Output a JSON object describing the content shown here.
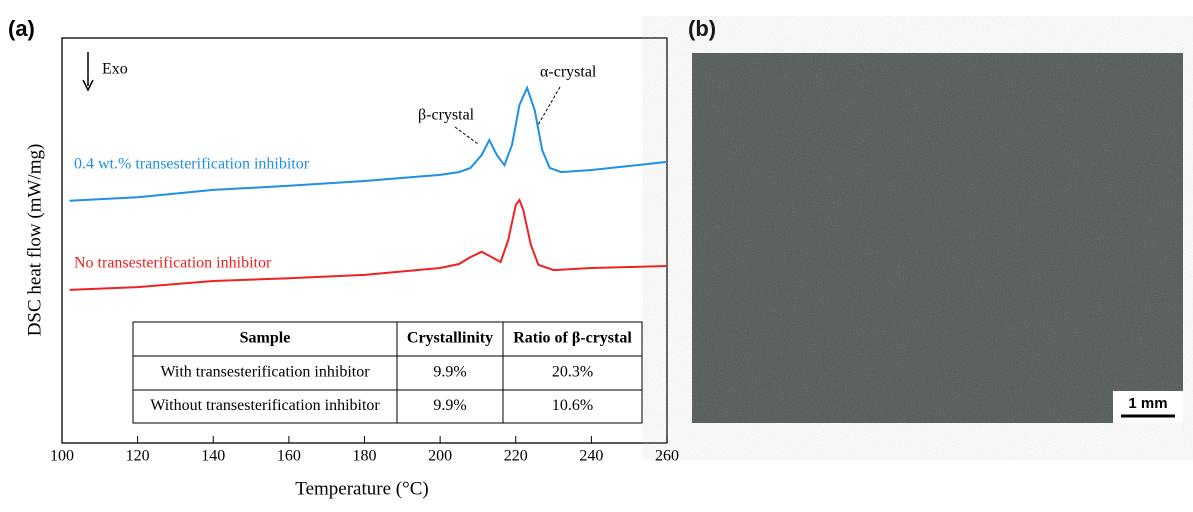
{
  "panel_labels": [
    "(a)",
    "(b)"
  ],
  "chart_data": {
    "type": "line",
    "x_label": "Temperature (°C)",
    "y_label": "DSC heat flow  (mW/mg)",
    "xlim": [
      100,
      260
    ],
    "xticks": [
      100,
      120,
      140,
      160,
      180,
      200,
      220,
      240,
      260
    ],
    "ylim": [
      0,
      100
    ],
    "annotations": [
      "Exo",
      "β-crystal",
      "α-crystal"
    ],
    "series": [
      {
        "name": "0.4 wt.% transesterification inhibitor",
        "color": "#1e90e6",
        "x": [
          102,
          120,
          140,
          160,
          180,
          200,
          205,
          208,
          211,
          213,
          215,
          217,
          219,
          221,
          223,
          225,
          227,
          229,
          232,
          240,
          260
        ],
        "values": [
          59.8,
          60.7,
          62.5,
          63.5,
          64.7,
          66.2,
          66.9,
          67.9,
          71.1,
          74.8,
          71.1,
          68.6,
          73.6,
          83.5,
          87.7,
          82.2,
          72.3,
          67.9,
          66.9,
          67.4,
          69.4
        ]
      },
      {
        "name": "No transesterification inhibitor",
        "color": "#ee2222",
        "x": [
          102,
          120,
          140,
          160,
          180,
          200,
          205,
          208,
          211,
          214,
          216,
          218,
          220,
          221,
          222,
          224,
          226,
          230,
          240,
          260
        ],
        "values": [
          37.8,
          38.5,
          40.0,
          40.7,
          41.5,
          43.2,
          44.2,
          45.9,
          47.2,
          45.7,
          44.7,
          50.1,
          58.8,
          60.0,
          57.5,
          48.9,
          44.0,
          42.7,
          43.2,
          43.7
        ]
      }
    ]
  },
  "table": {
    "header": [
      "Sample",
      "Crystallinity",
      "Ratio of β-crystal"
    ],
    "rows": [
      [
        "With transesterification inhibitor",
        "9.9%",
        "20.3%"
      ],
      [
        "Without transesterification inhibitor",
        "9.9%",
        "10.6%"
      ]
    ]
  },
  "image": {
    "scale_bar": "1 mm"
  }
}
